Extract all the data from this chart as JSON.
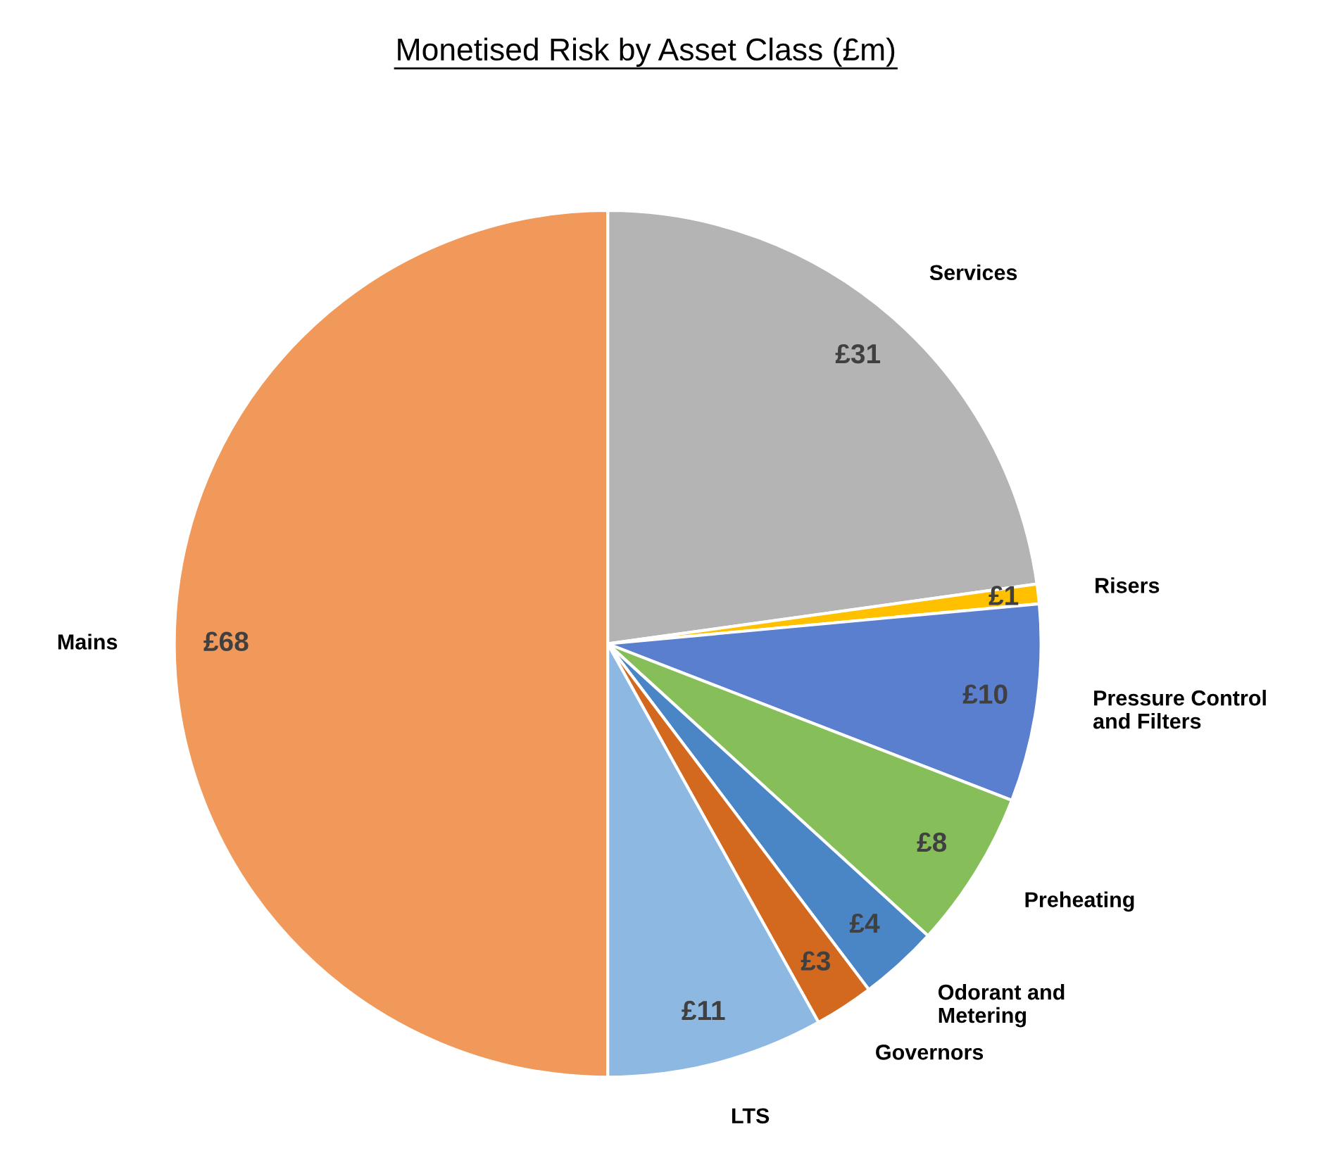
{
  "chart_data": {
    "type": "pie",
    "title": "Monetised Risk by Asset Class (£m)",
    "categories": [
      "Services",
      "Risers",
      "Pressure Control\nand Filters",
      "Preheating",
      "Odorant and\nMetering",
      "Governors",
      "LTS",
      "Mains"
    ],
    "values": [
      31,
      1,
      10,
      8,
      4,
      3,
      11,
      68
    ],
    "value_labels": [
      "£31",
      "£1",
      "£10",
      "£8",
      "£4",
      "£3",
      "£11",
      "£68"
    ],
    "colors": [
      "#b4b4b4",
      "#ffc000",
      "#5b7fcf",
      "#86bf5a",
      "#4a86c5",
      "#d2691e",
      "#8db8e2",
      "#f0995a"
    ]
  }
}
